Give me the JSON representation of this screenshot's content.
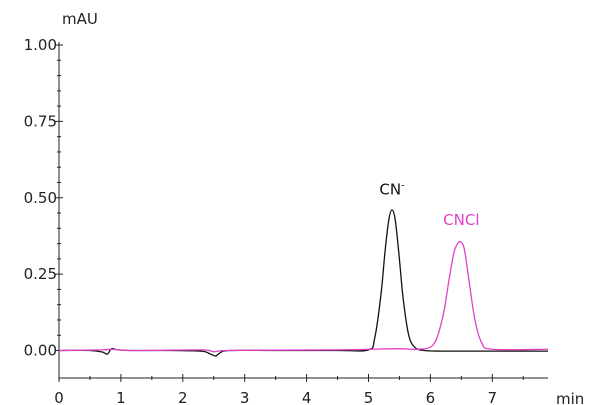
{
  "chart_data": {
    "type": "line",
    "ylabel": "mAU",
    "xlabel": "min",
    "xlim": [
      0,
      7.9
    ],
    "ylim": [
      -0.09,
      1.0
    ],
    "x_ticks": [
      0,
      1,
      2,
      3,
      4,
      5,
      6,
      7
    ],
    "x_tick_labels": [
      "0",
      "1",
      "2",
      "3",
      "4",
      "5",
      "6",
      "7"
    ],
    "y_ticks": [
      0.0,
      0.25,
      0.5,
      0.75,
      1.0
    ],
    "y_tick_labels": [
      "0.00",
      "0.25",
      "0.50",
      "0.75",
      "1.00"
    ],
    "grid": false,
    "series": [
      {
        "color": "#111111",
        "x": [
          0.0,
          0.5,
          0.7,
          0.78,
          0.85,
          0.95,
          1.2,
          1.8,
          2.3,
          2.45,
          2.53,
          2.6,
          2.75,
          3.5,
          4.5,
          5.0,
          5.1,
          5.2,
          5.27,
          5.33,
          5.38,
          5.43,
          5.49,
          5.56,
          5.65,
          5.75,
          5.9,
          6.2,
          7.0,
          7.9
        ],
        "y": [
          0.0,
          0.0,
          -0.005,
          -0.012,
          0.006,
          0.002,
          0.0,
          0.0,
          -0.002,
          -0.012,
          -0.018,
          -0.008,
          0.0,
          0.0,
          0.0,
          0.002,
          0.04,
          0.18,
          0.33,
          0.43,
          0.46,
          0.43,
          0.32,
          0.17,
          0.05,
          0.01,
          0.0,
          -0.002,
          -0.002,
          -0.002
        ]
      },
      {
        "color": "#e040c8",
        "x": [
          0.0,
          0.7,
          0.85,
          1.2,
          2.3,
          2.5,
          2.7,
          3.5,
          4.5,
          5.0,
          5.5,
          5.8,
          6.05,
          6.2,
          6.3,
          6.38,
          6.44,
          6.49,
          6.55,
          6.63,
          6.72,
          6.83,
          7.0,
          7.9
        ],
        "y": [
          0.0,
          0.002,
          0.004,
          0.0,
          0.002,
          -0.004,
          0.0,
          0.001,
          0.002,
          0.004,
          0.006,
          0.004,
          0.02,
          0.11,
          0.23,
          0.32,
          0.35,
          0.355,
          0.33,
          0.22,
          0.1,
          0.025,
          0.004,
          0.004
        ]
      }
    ],
    "annotations": [
      {
        "text": "CN",
        "superscript": "-",
        "x": 5.38,
        "y": 0.51,
        "color": "#111111"
      },
      {
        "text": "CNCl",
        "x": 6.5,
        "y": 0.41,
        "color": "#e040c8"
      }
    ]
  }
}
